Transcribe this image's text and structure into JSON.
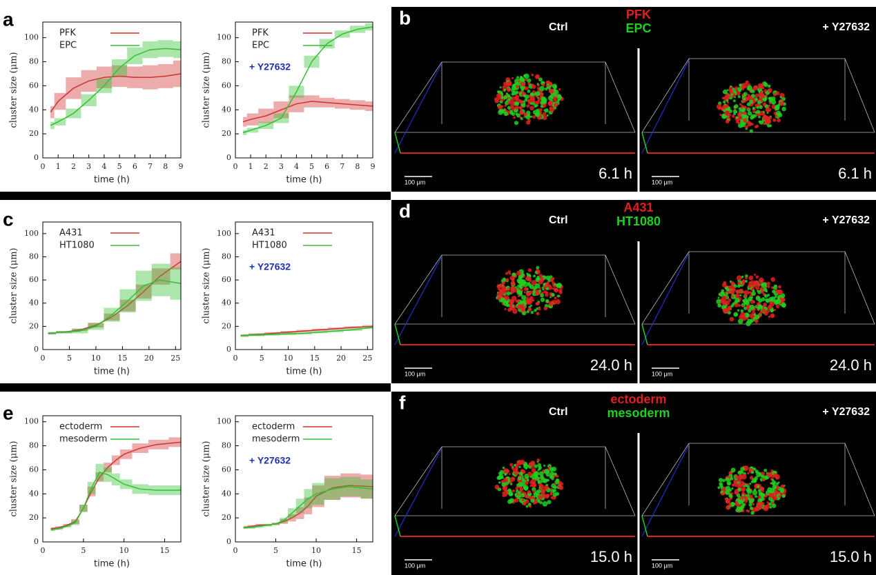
{
  "chart_data": [
    {
      "type": "line",
      "panel_label": "a",
      "xlabel": "time (h)",
      "ylabel": "cluster size (μm)",
      "xlim": [
        0,
        9
      ],
      "ylim": [
        0,
        113
      ],
      "xticks": [
        0,
        1,
        2,
        3,
        4,
        5,
        6,
        7,
        8,
        9
      ],
      "yticks": [
        0,
        20,
        40,
        60,
        80,
        100
      ],
      "x": [
        0.5,
        1,
        2,
        3,
        4,
        5,
        6,
        7,
        8,
        9
      ],
      "series": [
        {
          "name": "PFK",
          "color": "#d03030",
          "values": [
            38,
            47,
            58,
            64,
            67,
            68,
            67,
            67,
            68,
            70
          ],
          "errors": [
            5,
            7,
            9,
            9,
            9,
            9,
            9,
            10,
            10,
            11
          ]
        },
        {
          "name": "EPC",
          "color": "#30c030",
          "values": [
            27,
            30,
            37,
            48,
            60,
            75,
            85,
            90,
            91,
            90
          ],
          "errors": [
            3,
            3,
            4,
            5,
            6,
            7,
            7,
            7,
            7,
            7
          ]
        }
      ]
    },
    {
      "type": "line",
      "annotation": "+ Y27632",
      "xlabel": "time (h)",
      "ylabel": "cluster size (μm)",
      "xlim": [
        0,
        9
      ],
      "ylim": [
        0,
        113
      ],
      "xticks": [
        0,
        1,
        2,
        3,
        4,
        5,
        6,
        7,
        8,
        9
      ],
      "yticks": [
        0,
        20,
        40,
        60,
        80,
        100
      ],
      "x": [
        0.5,
        1,
        2,
        3,
        4,
        5,
        6,
        7,
        8,
        9
      ],
      "series": [
        {
          "name": "PFK",
          "color": "#d03030",
          "values": [
            30,
            32,
            35,
            40,
            45,
            47,
            46,
            45,
            44,
            43
          ],
          "errors": [
            4,
            5,
            6,
            7,
            7,
            5,
            4,
            4,
            4,
            4
          ]
        },
        {
          "name": "EPC",
          "color": "#30c030",
          "values": [
            21,
            23,
            27,
            33,
            55,
            80,
            95,
            103,
            107,
            109
          ],
          "errors": [
            2,
            2,
            3,
            4,
            5,
            5,
            4,
            3,
            3,
            3
          ]
        }
      ]
    },
    {
      "type": "line",
      "panel_label": "c",
      "xlabel": "time (h)",
      "ylabel": "cluster size (μm)",
      "xlim": [
        0,
        26
      ],
      "ylim": [
        0,
        110
      ],
      "xticks": [
        0,
        5,
        10,
        15,
        20,
        25
      ],
      "yticks": [
        0,
        20,
        40,
        60,
        80,
        100
      ],
      "x": [
        1,
        4,
        7,
        10,
        13,
        16,
        19,
        22,
        26
      ],
      "series": [
        {
          "name": "A431",
          "color": "#d03030",
          "values": [
            14,
            15,
            17,
            21,
            28,
            38,
            50,
            63,
            76
          ],
          "errors": [
            1,
            1,
            1,
            2,
            3,
            5,
            6,
            7,
            7
          ]
        },
        {
          "name": "HT1080",
          "color": "#30c030",
          "values": [
            14,
            15,
            16,
            20,
            30,
            42,
            55,
            60,
            57
          ],
          "errors": [
            1,
            1,
            2,
            3,
            6,
            10,
            13,
            14,
            14
          ]
        }
      ]
    },
    {
      "type": "line",
      "annotation": "+ Y27632",
      "xlabel": "time (h)",
      "ylabel": "cluster size (μm)",
      "xlim": [
        0,
        26
      ],
      "ylim": [
        0,
        110
      ],
      "xticks": [
        0,
        5,
        10,
        15,
        20,
        25
      ],
      "yticks": [
        0,
        20,
        40,
        60,
        80,
        100
      ],
      "x": [
        1,
        4,
        7,
        10,
        13,
        16,
        19,
        22,
        26
      ],
      "series": [
        {
          "name": "A431",
          "color": "#d03030",
          "values": [
            12,
            13,
            14,
            15,
            16,
            17,
            18,
            19,
            20
          ],
          "errors": [
            1,
            1,
            1,
            1,
            1,
            1,
            1,
            1,
            1
          ]
        },
        {
          "name": "HT1080",
          "color": "#30c030",
          "values": [
            12,
            12.5,
            13,
            13.5,
            14,
            15,
            16,
            17,
            19
          ],
          "errors": [
            1,
            1,
            1,
            1,
            1,
            1,
            1,
            1,
            1
          ]
        }
      ]
    },
    {
      "type": "line",
      "panel_label": "e",
      "xlabel": "time (h)",
      "ylabel": "cluster size (μm)",
      "xlim": [
        0,
        17
      ],
      "ylim": [
        0,
        105
      ],
      "xticks": [
        0,
        5,
        10,
        15
      ],
      "yticks": [
        0,
        20,
        40,
        60,
        80,
        100
      ],
      "x": [
        1,
        2,
        3,
        4,
        5,
        6,
        7,
        8,
        9,
        10,
        12,
        14,
        17
      ],
      "series": [
        {
          "name": "ectoderm",
          "color": "#d03030",
          "values": [
            11,
            12,
            14,
            17,
            28,
            42,
            54,
            62,
            68,
            73,
            78,
            81,
            83
          ],
          "errors": [
            1,
            1,
            1,
            2,
            3,
            4,
            4,
            4,
            4,
            4,
            4,
            4,
            4
          ]
        },
        {
          "name": "mesoderm",
          "color": "#30c030",
          "values": [
            10,
            11,
            13,
            16,
            28,
            45,
            58,
            56,
            52,
            48,
            44,
            43,
            43
          ],
          "errors": [
            1,
            1,
            1,
            2,
            3,
            5,
            7,
            6,
            5,
            4,
            4,
            4,
            4
          ]
        }
      ]
    },
    {
      "type": "line",
      "annotation": "+ Y27632",
      "xlabel": "time (h)",
      "ylabel": "cluster size (μm)",
      "xlim": [
        0,
        17
      ],
      "ylim": [
        0,
        105
      ],
      "xticks": [
        0,
        5,
        10,
        15
      ],
      "yticks": [
        0,
        20,
        40,
        60,
        80,
        100
      ],
      "x": [
        1,
        2,
        3,
        4,
        5,
        6,
        7,
        8,
        9,
        10,
        12,
        14,
        17
      ],
      "series": [
        {
          "name": "ectoderm",
          "color": "#d03030",
          "values": [
            12,
            13,
            14,
            14,
            15,
            17,
            20,
            24,
            30,
            38,
            45,
            47,
            46
          ],
          "errors": [
            1,
            1,
            1,
            1,
            1,
            2,
            3,
            5,
            7,
            9,
            10,
            10,
            10
          ]
        },
        {
          "name": "mesoderm",
          "color": "#30c030",
          "values": [
            12,
            12,
            13,
            14,
            15,
            18,
            24,
            30,
            36,
            40,
            44,
            46,
            44
          ],
          "errors": [
            1,
            1,
            1,
            1,
            1,
            2,
            4,
            6,
            8,
            9,
            9,
            8,
            8
          ]
        }
      ]
    }
  ],
  "images": [
    {
      "letter": "b",
      "ctrl": "Ctrl",
      "markers": [
        "PFK",
        "EPC"
      ],
      "treated": "+ Y27632",
      "times": [
        "6.1 h",
        "6.1 h"
      ],
      "scale": [
        "100 μm",
        "100 μm"
      ]
    },
    {
      "letter": "d",
      "ctrl": "Ctrl",
      "markers": [
        "A431",
        "HT1080"
      ],
      "treated": "+ Y27632",
      "times": [
        "24.0 h",
        "24.0 h"
      ],
      "scale": [
        "100 μm",
        "100 μm"
      ]
    },
    {
      "letter": "f",
      "ctrl": "Ctrl",
      "markers": [
        "ectoderm",
        "mesoderm"
      ],
      "treated": "+ Y27632",
      "times": [
        "15.0 h",
        "15.0 h"
      ],
      "scale": [
        "100 μm",
        "100 μm"
      ]
    }
  ]
}
